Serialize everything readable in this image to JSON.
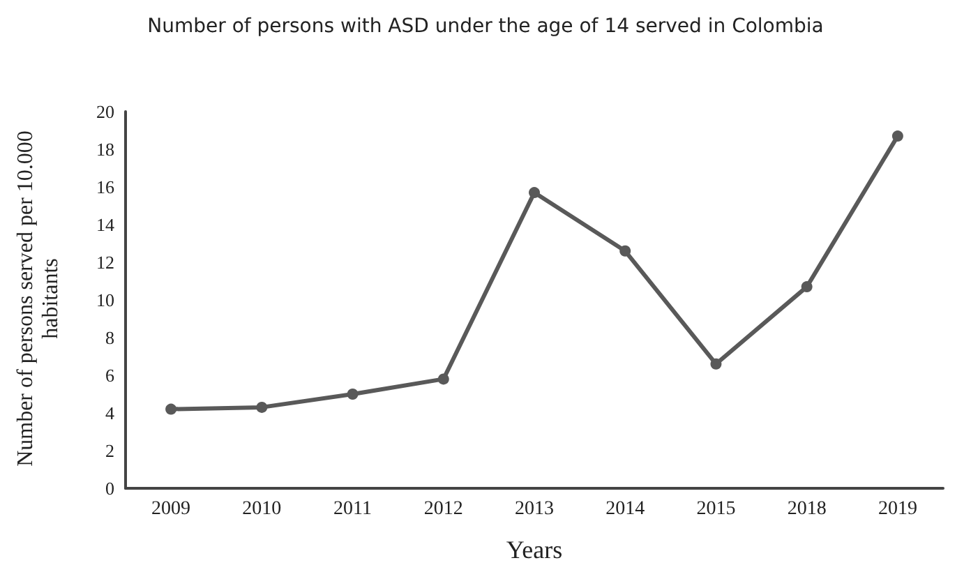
{
  "chart_data": {
    "type": "line",
    "title": "Number of persons with ASD under the age of 14 served in Colombia",
    "xlabel": "Years",
    "ylabel": "Number of persons served per 10.000 habitants",
    "categories": [
      "2009",
      "2010",
      "2011",
      "2012",
      "2013",
      "2014",
      "2015",
      "2018",
      "2019"
    ],
    "series": [
      {
        "color": "#595959",
        "values": [
          4.2,
          4.3,
          5.0,
          5.8,
          15.7,
          12.6,
          6.6,
          10.7,
          18.7
        ]
      }
    ],
    "ylim": [
      0,
      20
    ],
    "yticks": [
      0,
      2,
      4,
      6,
      8,
      10,
      12,
      14,
      16,
      18,
      20
    ],
    "grid": false,
    "marker": "circle",
    "line_style": "solid"
  }
}
